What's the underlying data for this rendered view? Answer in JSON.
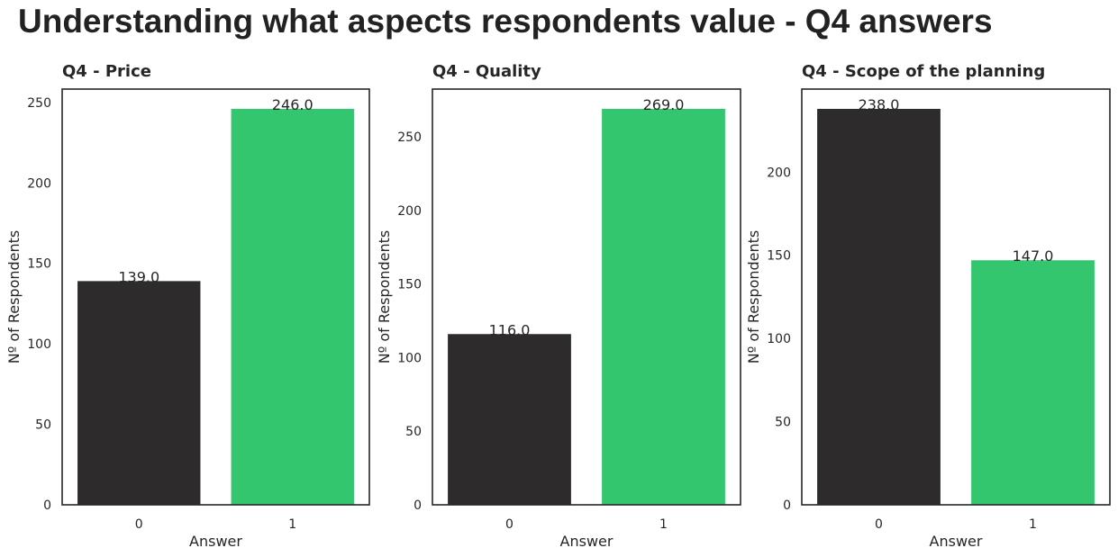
{
  "figure": {
    "title": "Understanding what aspects respondents value - Q4 answers"
  },
  "colors": {
    "dark_bar": "#2e2b2d",
    "green_bar": "#33c66e",
    "frame": "#262626",
    "text": "#262626"
  },
  "chart_data": [
    {
      "type": "bar",
      "title": "Q4 - Price",
      "xlabel": "Answer",
      "ylabel": "Nº of Respondents",
      "categories": [
        "0",
        "1"
      ],
      "values": [
        139.0,
        246.0
      ],
      "value_labels": [
        "139.0",
        "246.0"
      ],
      "bar_colors": [
        "#2e2b2d",
        "#33c66e"
      ],
      "yticks": [
        0,
        50,
        100,
        150,
        200,
        250
      ],
      "ylim": [
        0,
        258.3
      ],
      "grid": false,
      "legend": "none"
    },
    {
      "type": "bar",
      "title": "Q4 - Quality",
      "xlabel": "Answer",
      "ylabel": "Nº of Respondents",
      "categories": [
        "0",
        "1"
      ],
      "values": [
        116.0,
        269.0
      ],
      "value_labels": [
        "116.0",
        "269.0"
      ],
      "bar_colors": [
        "#2e2b2d",
        "#33c66e"
      ],
      "yticks": [
        0,
        50,
        100,
        150,
        200,
        250
      ],
      "ylim": [
        0,
        282.45
      ],
      "grid": false,
      "legend": "none"
    },
    {
      "type": "bar",
      "title": "Q4 - Scope of the planning",
      "xlabel": "Answer",
      "ylabel": "Nº of Respondents",
      "categories": [
        "0",
        "1"
      ],
      "values": [
        238.0,
        147.0
      ],
      "value_labels": [
        "238.0",
        "147.0"
      ],
      "bar_colors": [
        "#2e2b2d",
        "#33c66e"
      ],
      "yticks": [
        0,
        50,
        100,
        150,
        200
      ],
      "ylim": [
        0,
        249.9
      ],
      "grid": false,
      "legend": "none"
    }
  ]
}
